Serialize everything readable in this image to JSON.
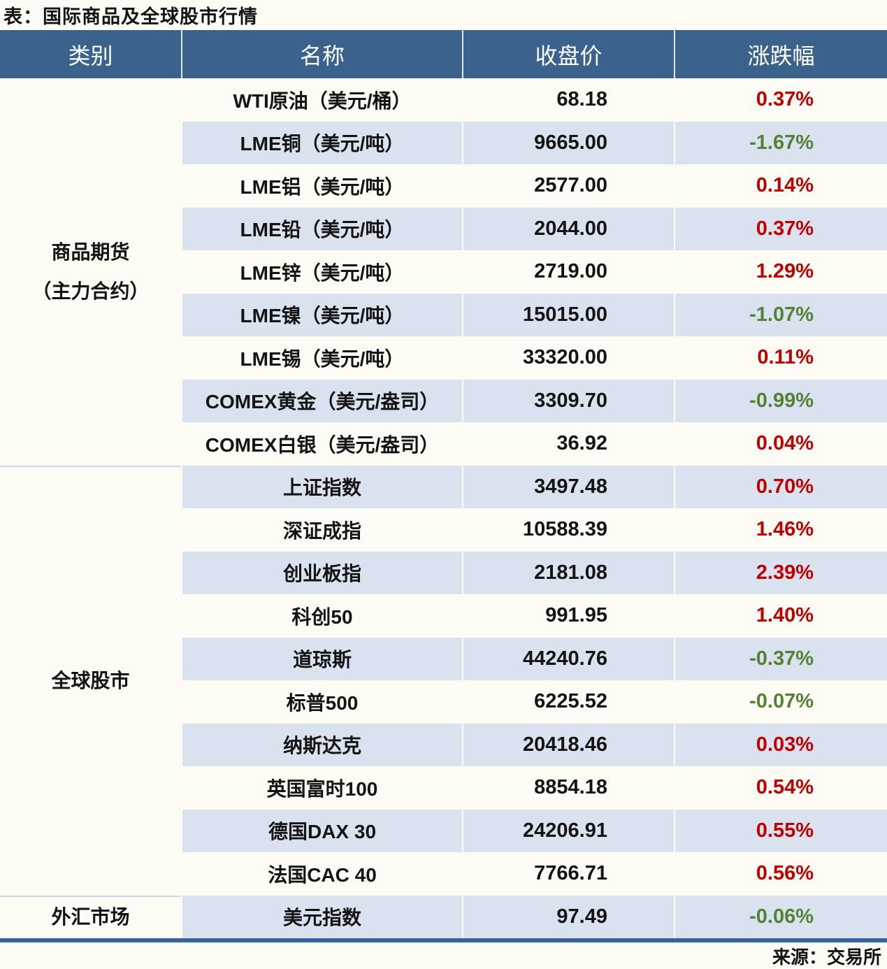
{
  "colors": {
    "header_bg": "#3A628C",
    "header_text": "#FDFDF8",
    "row_stripe": "#D9E2EE",
    "paper": "#FDFCF4",
    "positive_red": "#C00000",
    "negative_green": "#548235",
    "bottom_border": "#35639C",
    "section_divider": "#C9D5E3",
    "text": "#141414"
  },
  "chart_data": {
    "type": "table",
    "title": "表：国际商品及全球股市行情",
    "source": "来源：交易所",
    "columns": [
      "类别",
      "名称",
      "收盘价",
      "涨跌幅"
    ],
    "sections": [
      {
        "category": "商品期货（主力合约）",
        "category_lines": [
          "商品期货",
          "（主力合约）"
        ],
        "rows": [
          {
            "name": "WTI原油（美元/桶）",
            "close": 68.18,
            "change_pct": 0.37
          },
          {
            "name": "LME铜（美元/吨）",
            "close": 9665.0,
            "change_pct": -1.67
          },
          {
            "name": "LME铝（美元/吨）",
            "close": 2577.0,
            "change_pct": 0.14
          },
          {
            "name": "LME铅（美元/吨）",
            "close": 2044.0,
            "change_pct": 0.37
          },
          {
            "name": "LME锌（美元/吨）",
            "close": 2719.0,
            "change_pct": 1.29
          },
          {
            "name": "LME镍（美元/吨）",
            "close": 15015.0,
            "change_pct": -1.07
          },
          {
            "name": "LME锡（美元/吨）",
            "close": 33320.0,
            "change_pct": 0.11
          },
          {
            "name": "COMEX黄金（美元/盎司）",
            "close": 3309.7,
            "change_pct": -0.99
          },
          {
            "name": "COMEX白银（美元/盎司）",
            "close": 36.92,
            "change_pct": 0.04
          }
        ]
      },
      {
        "category": "全球股市",
        "category_lines": [
          "全球股市"
        ],
        "rows": [
          {
            "name": "上证指数",
            "close": 3497.48,
            "change_pct": 0.7
          },
          {
            "name": "深证成指",
            "close": 10588.39,
            "change_pct": 1.46
          },
          {
            "name": "创业板指",
            "close": 2181.08,
            "change_pct": 2.39
          },
          {
            "name": "科创50",
            "close": 991.95,
            "change_pct": 1.4
          },
          {
            "name": "道琼斯",
            "close": 44240.76,
            "change_pct": -0.37
          },
          {
            "name": "标普500",
            "close": 6225.52,
            "change_pct": -0.07
          },
          {
            "name": "纳斯达克",
            "close": 20418.46,
            "change_pct": 0.03
          },
          {
            "name": "英国富时100",
            "close": 8854.18,
            "change_pct": 0.54
          },
          {
            "name": "德国DAX 30",
            "close": 24206.91,
            "change_pct": 0.55
          },
          {
            "name": "法国CAC 40",
            "close": 7766.71,
            "change_pct": 0.56
          }
        ]
      },
      {
        "category": "外汇市场",
        "category_lines": [
          "外汇市场"
        ],
        "rows": [
          {
            "name": "美元指数",
            "close": 97.49,
            "change_pct": -0.06
          }
        ]
      }
    ]
  }
}
